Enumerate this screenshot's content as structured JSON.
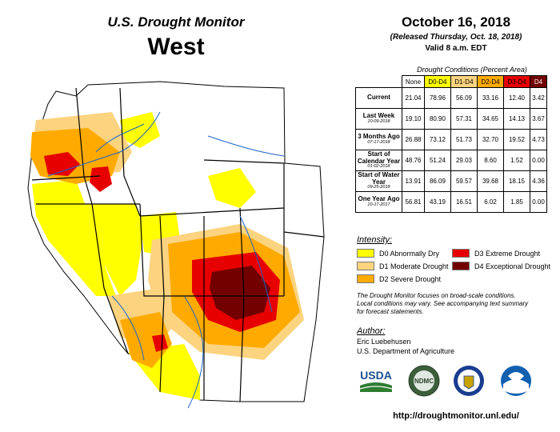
{
  "header": {
    "title": "U.S. Drought Monitor",
    "region": "West",
    "date": "October 16, 2018",
    "released": "(Released Thursday, Oct. 18, 2018)",
    "valid": "Valid 8 a.m. EDT"
  },
  "conditions": {
    "caption": "Drought Conditions (Percent Area)",
    "columns": [
      "None",
      "D0-D4",
      "D1-D4",
      "D2-D4",
      "D3-D4",
      "D4"
    ],
    "column_colors": [
      "#ffffff",
      "#ffff00",
      "#fcd37f",
      "#ffaa00",
      "#e60000",
      "#730000"
    ],
    "rows": [
      {
        "label": "Current",
        "date": "",
        "values": [
          "21.04",
          "78.96",
          "56.09",
          "33.16",
          "12.40",
          "3.42"
        ]
      },
      {
        "label": "Last Week",
        "date": "10-09-2018",
        "values": [
          "19.10",
          "80.90",
          "57.31",
          "34.65",
          "14.13",
          "3.67"
        ]
      },
      {
        "label": "3 Months Ago",
        "date": "07-17-2018",
        "values": [
          "26.88",
          "73.12",
          "51.73",
          "32.70",
          "19.52",
          "4.73"
        ]
      },
      {
        "label": "Start of Calendar Year",
        "date": "01-02-2018",
        "values": [
          "48.76",
          "51.24",
          "29.03",
          "8.60",
          "1.52",
          "0.00"
        ]
      },
      {
        "label": "Start of Water Year",
        "date": "09-25-2018",
        "values": [
          "13.91",
          "86.09",
          "59.57",
          "39.68",
          "18.15",
          "4.36"
        ]
      },
      {
        "label": "One Year Ago",
        "date": "10-17-2017",
        "values": [
          "56.81",
          "43.19",
          "16.51",
          "6.02",
          "1.85",
          "0.00"
        ]
      }
    ]
  },
  "legend": {
    "title": "Intensity:",
    "items": [
      {
        "label": "D0 Abnormally Dry",
        "color": "#ffff00"
      },
      {
        "label": "D1 Moderate Drought",
        "color": "#fcd37f"
      },
      {
        "label": "D2 Severe Drought",
        "color": "#ffaa00"
      },
      {
        "label": "D3 Extreme Drought",
        "color": "#e60000"
      },
      {
        "label": "D4 Exceptional Drought",
        "color": "#730000"
      }
    ]
  },
  "note": {
    "line1": "The Drought Monitor focuses on broad-scale conditions.",
    "line2": "Local conditions may vary. See accompanying text summary",
    "line3": "for forecast statements."
  },
  "author": {
    "title": "Author:",
    "name": "Eric Luebehusen",
    "org": "U.S. Department of Agriculture"
  },
  "logos": {
    "usda": "USDA",
    "ndmc": "NDMC"
  },
  "url": "http://droughtmonitor.unl.edu/"
}
